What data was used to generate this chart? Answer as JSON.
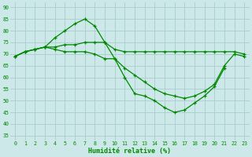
{
  "background_color": "#cce8e8",
  "grid_color": "#aacccc",
  "line_color": "#008800",
  "marker_color": "#008800",
  "xlabel": "Humidité relative (%)",
  "xlabel_color": "#008800",
  "ylabel_values": [
    35,
    40,
    45,
    50,
    55,
    60,
    65,
    70,
    75,
    80,
    85,
    90
  ],
  "xlim": [
    -0.5,
    23.5
  ],
  "ylim": [
    33,
    92
  ],
  "figsize": [
    3.2,
    2.0
  ],
  "dpi": 100,
  "series": [
    [
      69,
      71,
      72,
      73,
      77,
      80,
      83,
      85,
      82,
      75,
      68,
      60,
      53,
      52,
      50,
      47,
      45,
      46,
      49,
      52,
      56,
      64,
      null,
      null
    ],
    [
      69,
      71,
      72,
      73,
      73,
      74,
      74,
      75,
      75,
      75,
      72,
      71,
      71,
      71,
      71,
      71,
      71,
      71,
      71,
      71,
      71,
      71,
      71,
      70
    ],
    [
      69,
      71,
      72,
      73,
      72,
      71,
      71,
      71,
      70,
      68,
      68,
      64,
      61,
      58,
      55,
      53,
      52,
      51,
      52,
      54,
      57,
      65,
      70,
      69
    ]
  ]
}
